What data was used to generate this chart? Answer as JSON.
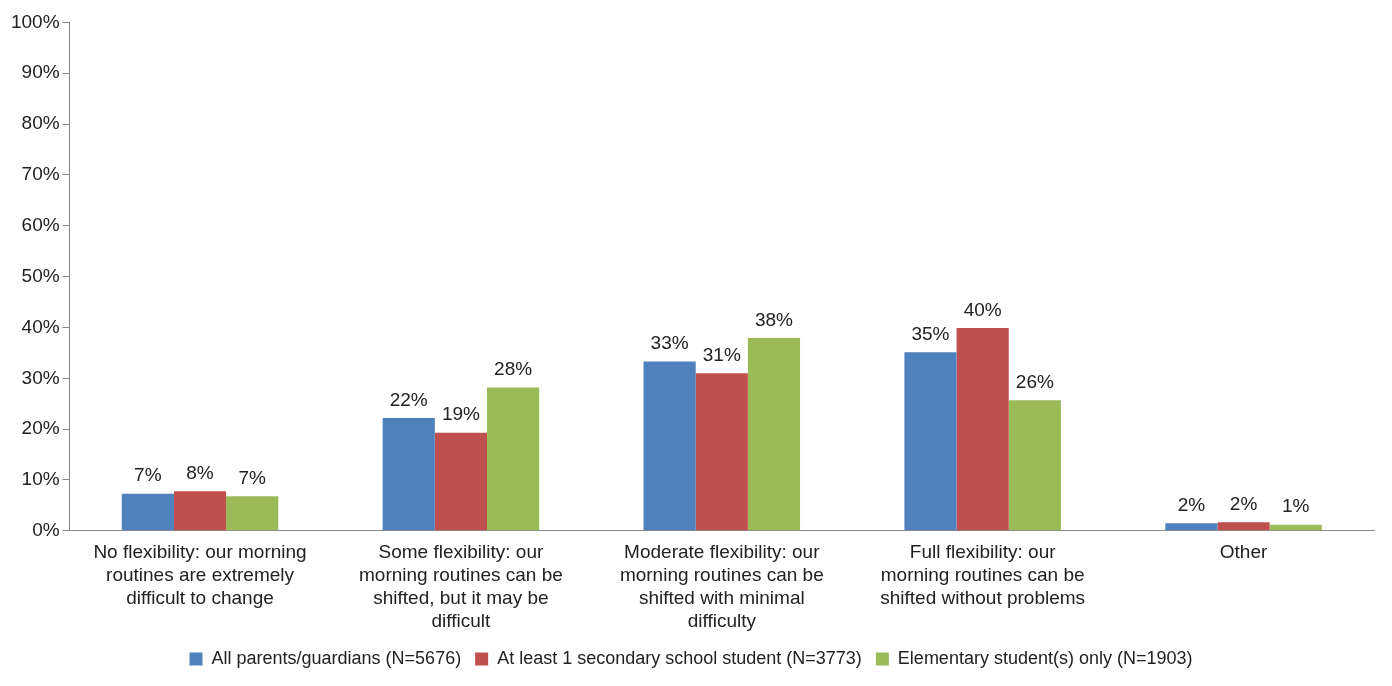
{
  "chart_data": {
    "type": "bar",
    "categories": [
      "No flexibility: our morning routines are extremely difficult to change",
      "Some flexibility: our morning routines can be shifted, but it may be difficult",
      "Moderate flexibility: our morning routines can be shifted with minimal difficulty",
      "Full flexibility: our morning routines can be shifted without problems",
      "Other"
    ],
    "series": [
      {
        "name": "All parents/guardians (N=5676)",
        "color": "#4f81bd",
        "values": [
          7.3,
          22.2,
          33.3,
          35.1,
          1.5
        ],
        "value_labels": [
          "7%",
          "22%",
          "33%",
          "35%",
          "2%"
        ]
      },
      {
        "name": "At least 1 secondary school student (N=3773)",
        "color": "#c0504d",
        "values": [
          7.8,
          19.3,
          31,
          39.9,
          1.7
        ],
        "value_labels": [
          "8%",
          "19%",
          "31%",
          "40%",
          "2%"
        ]
      },
      {
        "name": "Elementary student(s) only (N=1903)",
        "color": "#9bbb59",
        "values": [
          6.8,
          28.2,
          37.9,
          25.7,
          1.2
        ],
        "value_labels": [
          "7%",
          "28%",
          "38%",
          "26%",
          "1%"
        ]
      }
    ],
    "ylim": [
      0,
      100
    ],
    "yticks": [
      {
        "value": 0,
        "label": "0%"
      },
      {
        "value": 10,
        "label": "10%"
      },
      {
        "value": 20,
        "label": "20%"
      },
      {
        "value": 30,
        "label": "30%"
      },
      {
        "value": 40,
        "label": "40%"
      },
      {
        "value": 50,
        "label": "50%"
      },
      {
        "value": 60,
        "label": "60%"
      },
      {
        "value": 70,
        "label": "70%"
      },
      {
        "value": 80,
        "label": "80%"
      },
      {
        "value": 90,
        "label": "90%"
      },
      {
        "value": 100,
        "label": "100%"
      }
    ],
    "grid": false,
    "legend": "bottom"
  }
}
